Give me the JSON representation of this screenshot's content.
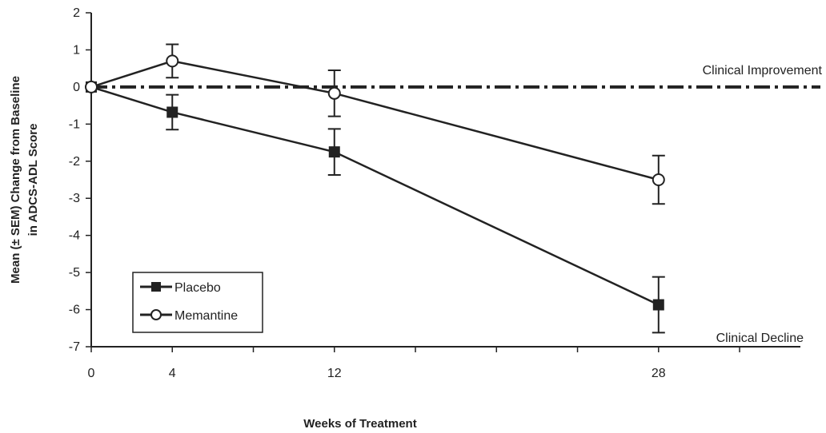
{
  "chart_data": {
    "type": "line",
    "xlabel": "Weeks of Treatment",
    "ylabel": [
      "Mean (± SEM) Change from Baseline",
      "in ADCS-ADL Score"
    ],
    "xlim": [
      0,
      35
    ],
    "ylim": [
      -7,
      2
    ],
    "x_ticks": [
      0,
      4,
      12,
      28
    ],
    "y_ticks": [
      2,
      1,
      0,
      -1,
      -2,
      -3,
      -4,
      -5,
      -6,
      -7
    ],
    "grid": false,
    "legend_placement": "bottom-left",
    "series": [
      {
        "name": "Placebo",
        "marker": "filled-square",
        "color": "#222222",
        "x": [
          0,
          4,
          12,
          28
        ],
        "y": [
          0,
          -0.68,
          -1.75,
          -5.87
        ],
        "sem": [
          0,
          0.47,
          0.62,
          0.75
        ]
      },
      {
        "name": "Memantine",
        "marker": "open-circle",
        "color": "#222222",
        "x": [
          0,
          4,
          12,
          28
        ],
        "y": [
          0,
          0.7,
          -0.17,
          -2.5
        ],
        "sem": [
          0,
          0.45,
          0.62,
          0.65
        ]
      }
    ],
    "reference_line": {
      "y": 0,
      "style": "dash-dot"
    },
    "annotations": [
      {
        "text": "Clinical Improvement"
      },
      {
        "text": "Clinical Decline"
      }
    ]
  }
}
